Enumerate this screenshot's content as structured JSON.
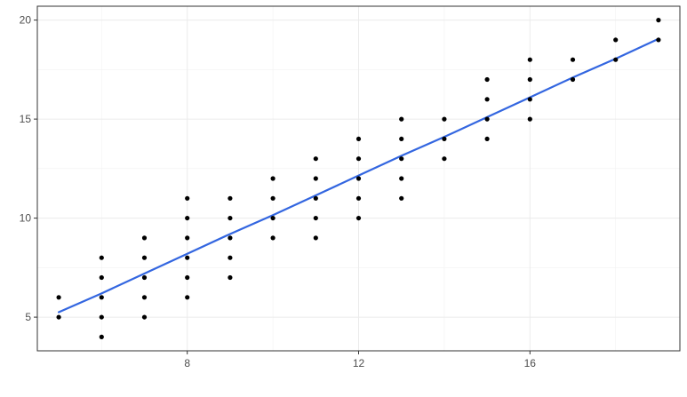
{
  "chart_data": {
    "type": "scatter",
    "title": "",
    "xlabel": "",
    "ylabel": "",
    "xlim": [
      4.5,
      19.5
    ],
    "ylim": [
      3.3,
      20.7
    ],
    "x_ticks": [
      8,
      12,
      16
    ],
    "x_minor_ticks": [
      6,
      10,
      14,
      18
    ],
    "y_ticks": [
      5,
      10,
      15,
      20
    ],
    "y_minor_ticks": [
      7.5,
      12.5,
      17.5
    ],
    "grid": true,
    "legend": "none",
    "point_color": "#000000",
    "trend_color": "#3366E0",
    "points": [
      [
        5,
        5
      ],
      [
        5,
        6
      ],
      [
        6,
        4
      ],
      [
        6,
        5
      ],
      [
        6,
        6
      ],
      [
        6,
        7
      ],
      [
        6,
        8
      ],
      [
        7,
        5
      ],
      [
        7,
        6
      ],
      [
        7,
        7
      ],
      [
        7,
        8
      ],
      [
        7,
        9
      ],
      [
        8,
        6
      ],
      [
        8,
        7
      ],
      [
        8,
        8
      ],
      [
        8,
        9
      ],
      [
        8,
        10
      ],
      [
        8,
        11
      ],
      [
        9,
        7
      ],
      [
        9,
        8
      ],
      [
        9,
        9
      ],
      [
        9,
        10
      ],
      [
        9,
        11
      ],
      [
        10,
        9
      ],
      [
        10,
        10
      ],
      [
        10,
        11
      ],
      [
        10,
        12
      ],
      [
        11,
        9
      ],
      [
        11,
        10
      ],
      [
        11,
        11
      ],
      [
        11,
        12
      ],
      [
        11,
        13
      ],
      [
        12,
        10
      ],
      [
        12,
        11
      ],
      [
        12,
        12
      ],
      [
        12,
        13
      ],
      [
        12,
        14
      ],
      [
        13,
        11
      ],
      [
        13,
        12
      ],
      [
        13,
        13
      ],
      [
        13,
        14
      ],
      [
        13,
        15
      ],
      [
        14,
        13
      ],
      [
        14,
        14
      ],
      [
        14,
        15
      ],
      [
        15,
        14
      ],
      [
        15,
        15
      ],
      [
        15,
        16
      ],
      [
        15,
        17
      ],
      [
        16,
        15
      ],
      [
        16,
        16
      ],
      [
        16,
        17
      ],
      [
        16,
        18
      ],
      [
        17,
        17
      ],
      [
        17,
        18
      ],
      [
        18,
        18
      ],
      [
        18,
        19
      ],
      [
        19,
        19
      ],
      [
        19,
        20
      ]
    ],
    "trend_line": [
      [
        5,
        5.25
      ],
      [
        6,
        6.2
      ],
      [
        7,
        7.2
      ],
      [
        8,
        8.2
      ],
      [
        9,
        9.2
      ],
      [
        10,
        10.15
      ],
      [
        11,
        11.15
      ],
      [
        12,
        12.15
      ],
      [
        13,
        13.15
      ],
      [
        14,
        14.1
      ],
      [
        15,
        15.1
      ],
      [
        16,
        16.1
      ],
      [
        17,
        17.1
      ],
      [
        18,
        18.05
      ],
      [
        19,
        19.05
      ]
    ]
  }
}
